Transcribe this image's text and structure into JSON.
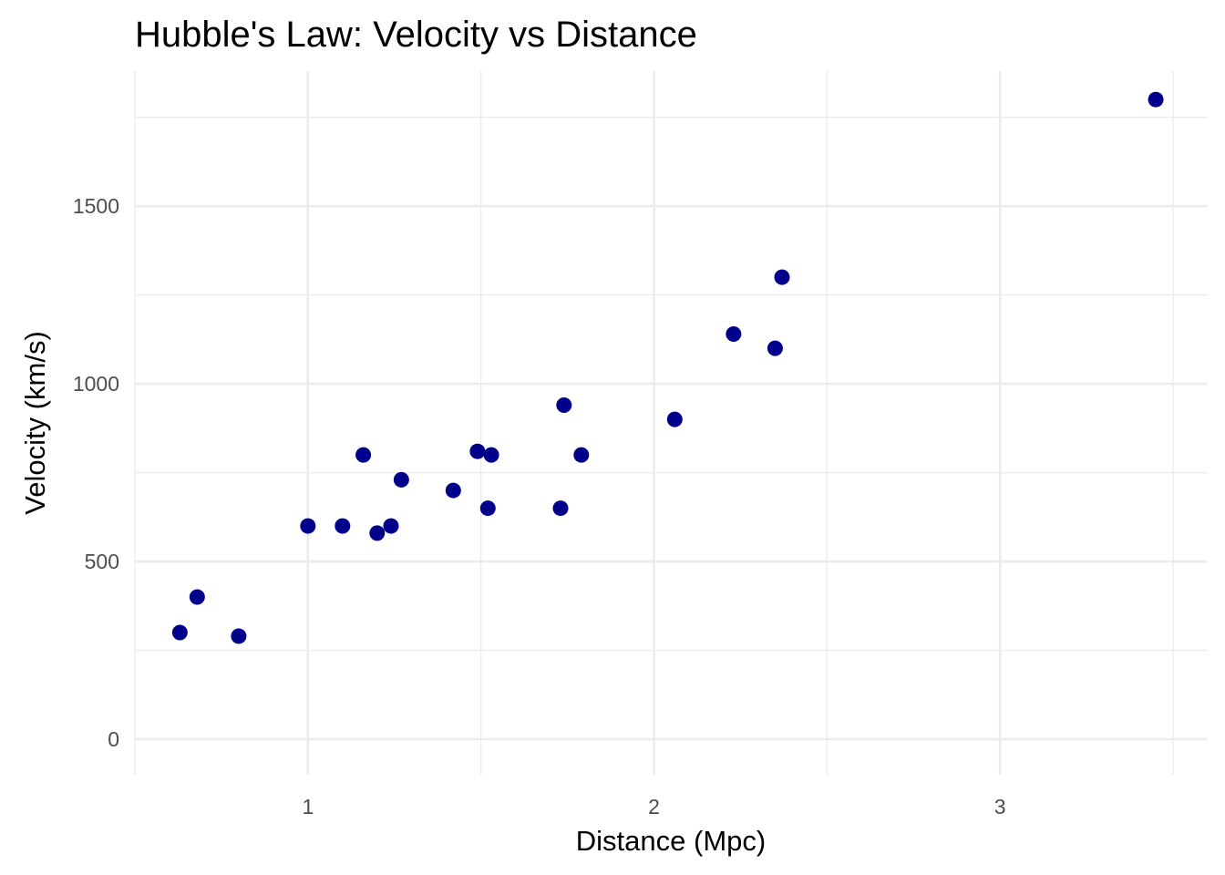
{
  "chart_data": {
    "type": "scatter",
    "title": "Hubble's Law: Velocity vs Distance",
    "xlabel": "Distance (Mpc)",
    "ylabel": "Velocity (km/s)",
    "xlim": [
      0.5,
      3.6
    ],
    "ylim": [
      -100,
      1880
    ],
    "x_ticks": [
      1,
      2,
      3
    ],
    "x_tick_labels": [
      "1",
      "2",
      "3"
    ],
    "x_minor_ticks": [
      0.5,
      1.5,
      2.5,
      3.5
    ],
    "y_ticks": [
      0,
      500,
      1000,
      1500
    ],
    "y_tick_labels": [
      "0",
      "500",
      "1000",
      "1500"
    ],
    "y_minor_ticks": [
      250,
      750,
      1250,
      1750
    ],
    "grid": true,
    "point_color": "#00008b",
    "series": [
      {
        "points": [
          {
            "x": 0.63,
            "y": 300
          },
          {
            "x": 0.68,
            "y": 400
          },
          {
            "x": 0.8,
            "y": 290
          },
          {
            "x": 1.0,
            "y": 600
          },
          {
            "x": 1.1,
            "y": 600
          },
          {
            "x": 1.16,
            "y": 800
          },
          {
            "x": 1.2,
            "y": 580
          },
          {
            "x": 1.24,
            "y": 600
          },
          {
            "x": 1.27,
            "y": 730
          },
          {
            "x": 1.42,
            "y": 700
          },
          {
            "x": 1.49,
            "y": 810
          },
          {
            "x": 1.52,
            "y": 650
          },
          {
            "x": 1.53,
            "y": 800
          },
          {
            "x": 1.73,
            "y": 650
          },
          {
            "x": 1.74,
            "y": 940
          },
          {
            "x": 1.79,
            "y": 800
          },
          {
            "x": 2.06,
            "y": 900
          },
          {
            "x": 2.23,
            "y": 1140
          },
          {
            "x": 2.35,
            "y": 1100
          },
          {
            "x": 2.37,
            "y": 1300
          },
          {
            "x": 3.45,
            "y": 1800
          }
        ]
      }
    ]
  }
}
